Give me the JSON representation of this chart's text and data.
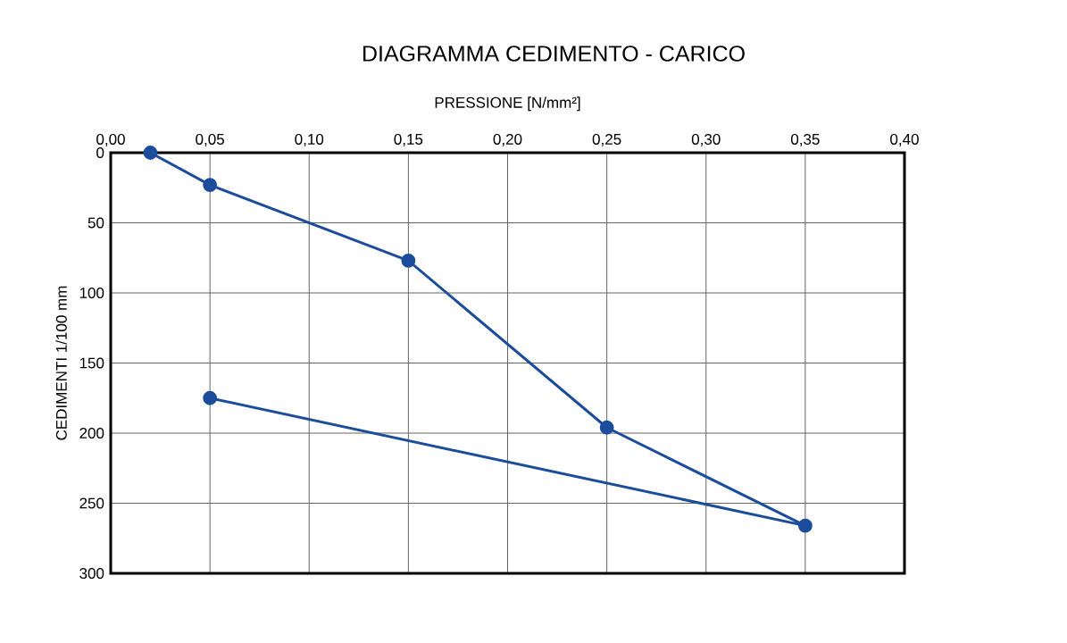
{
  "chart_data": {
    "type": "line",
    "title": "DIAGRAMMA CEDIMENTO - CARICO",
    "xlabel": "PRESSIONE  [N/mm²]",
    "ylabel": "CEDIMENTI 1/100 mm",
    "x": [
      0.02,
      0.05,
      0.15,
      0.25,
      0.35,
      0.05
    ],
    "series": [
      {
        "color": "#1c4d9c",
        "values": [
          0,
          23,
          77,
          196,
          266,
          175
        ]
      }
    ],
    "xlim": [
      0,
      0.4
    ],
    "xticks": [
      {
        "value": 0,
        "label": "0,00"
      },
      {
        "value": 0.05,
        "label": "0,05"
      },
      {
        "value": 0.1,
        "label": "0,10"
      },
      {
        "value": 0.15,
        "label": "0,15"
      },
      {
        "value": 0.2,
        "label": "0,20"
      },
      {
        "value": 0.25,
        "label": "0,25"
      },
      {
        "value": 0.3,
        "label": "0,30"
      },
      {
        "value": 0.35,
        "label": "0,35"
      },
      {
        "value": 0.4,
        "label": "0,40"
      }
    ],
    "ylim": [
      300,
      0
    ],
    "yticks": [
      0,
      50,
      100,
      150,
      200,
      250,
      300
    ],
    "grid": true,
    "marker": "circle",
    "line_style": "solid"
  }
}
